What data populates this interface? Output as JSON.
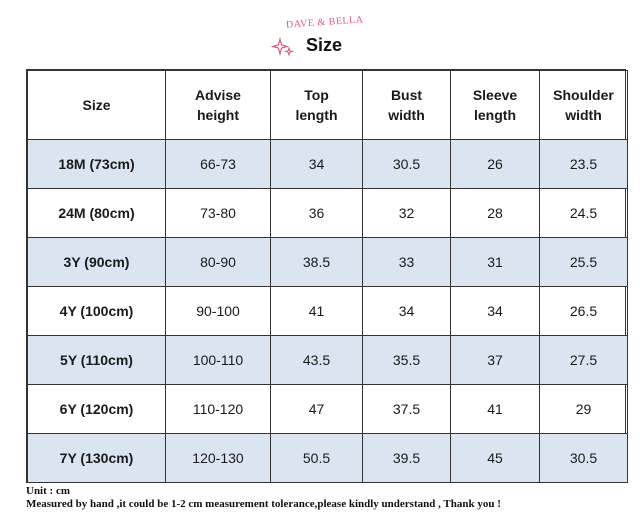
{
  "header": {
    "brand": "DAVE & BELLA",
    "title": "Size"
  },
  "table": {
    "headers": [
      "Size",
      "Advise height",
      "Top length",
      "Bust width",
      "Sleeve length",
      "Shoulder width"
    ],
    "rows": [
      [
        "18M (73cm)",
        "66-73",
        "34",
        "30.5",
        "26",
        "23.5"
      ],
      [
        "24M (80cm)",
        "73-80",
        "36",
        "32",
        "28",
        "24.5"
      ],
      [
        "3Y (90cm)",
        "80-90",
        "38.5",
        "33",
        "31",
        "25.5"
      ],
      [
        "4Y (100cm)",
        "90-100",
        "41",
        "34",
        "34",
        "26.5"
      ],
      [
        "5Y (110cm)",
        "100-110",
        "43.5",
        "35.5",
        "37",
        "27.5"
      ],
      [
        "6Y (120cm)",
        "110-120",
        "47",
        "37.5",
        "41",
        "29"
      ],
      [
        "7Y (130cm)",
        "120-130",
        "50.5",
        "39.5",
        "45",
        "30.5"
      ]
    ]
  },
  "footer": {
    "unit": "Unit : cm",
    "note": "Measured by hand ,it could be 1-2 cm measurement tolerance,please kindly understand , Thank you !"
  },
  "colors": {
    "shade": "#dbe5f1",
    "brand": "#e4577a"
  }
}
